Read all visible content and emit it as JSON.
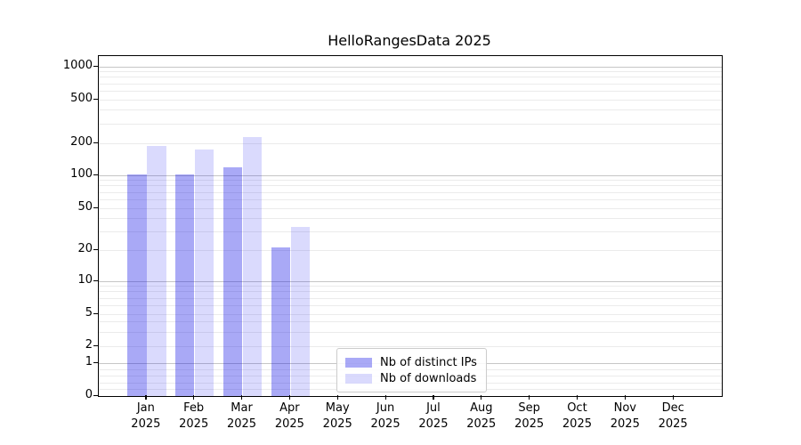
{
  "title": "HelloRangesData 2025",
  "chart_data": {
    "type": "bar",
    "title": "HelloRangesData 2025",
    "yscale": "symlog",
    "grid": true,
    "ylim": [
      0,
      1200
    ],
    "y_ticks": [
      0,
      1,
      2,
      5,
      10,
      20,
      50,
      100,
      200,
      500,
      1000
    ],
    "categories": [
      {
        "month": "Jan",
        "year": "2025"
      },
      {
        "month": "Feb",
        "year": "2025"
      },
      {
        "month": "Mar",
        "year": "2025"
      },
      {
        "month": "Apr",
        "year": "2025"
      },
      {
        "month": "May",
        "year": "2025"
      },
      {
        "month": "Jun",
        "year": "2025"
      },
      {
        "month": "Jul",
        "year": "2025"
      },
      {
        "month": "Aug",
        "year": "2025"
      },
      {
        "month": "Sep",
        "year": "2025"
      },
      {
        "month": "Oct",
        "year": "2025"
      },
      {
        "month": "Nov",
        "year": "2025"
      },
      {
        "month": "Dec",
        "year": "2025"
      }
    ],
    "series": [
      {
        "name": "Nb of distinct IPs",
        "color": "rgba(10,10,230,0.35)",
        "values": [
          101,
          101,
          118,
          21,
          null,
          null,
          null,
          null,
          null,
          null,
          null,
          null
        ]
      },
      {
        "name": "Nb of downloads",
        "color": "rgba(10,10,240,0.15)",
        "values": [
          190,
          175,
          230,
          33,
          null,
          null,
          null,
          null,
          null,
          null,
          null,
          null
        ]
      }
    ],
    "legend_position": "lower center",
    "colors": {
      "grid_major": "#c6c6c6",
      "grid_minor": "#ebebeb",
      "axis": "#000000",
      "background": "#ffffff"
    }
  }
}
